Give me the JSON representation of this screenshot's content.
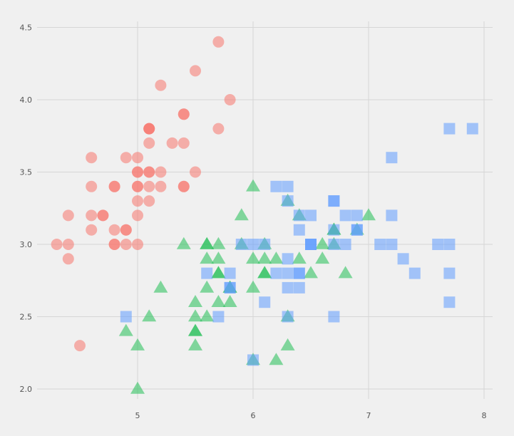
{
  "chart_data": {
    "type": "scatter",
    "title": "",
    "xlabel": "",
    "ylabel": "",
    "xlim": [
      4.2,
      8.1
    ],
    "ylim": [
      1.9,
      4.6
    ],
    "xticks": [
      5,
      6,
      7,
      8
    ],
    "yticks": [
      2.0,
      2.5,
      3.0,
      3.5,
      4.0,
      4.5
    ],
    "xtick_labels": [
      "5",
      "6",
      "7",
      "8"
    ],
    "ytick_labels": [
      "2.0",
      "2.5",
      "3.0",
      "3.5",
      "4.0",
      "4.5"
    ],
    "grid": true,
    "legend": "none",
    "series": [
      {
        "marker": "circle",
        "color": "#f8766d",
        "points": [
          [
            5.1,
            3.5
          ],
          [
            4.9,
            3.0
          ],
          [
            4.7,
            3.2
          ],
          [
            4.6,
            3.1
          ],
          [
            5.0,
            3.6
          ],
          [
            5.4,
            3.9
          ],
          [
            4.6,
            3.4
          ],
          [
            5.0,
            3.4
          ],
          [
            4.4,
            2.9
          ],
          [
            4.9,
            3.1
          ],
          [
            5.4,
            3.7
          ],
          [
            4.8,
            3.4
          ],
          [
            4.8,
            3.0
          ],
          [
            4.3,
            3.0
          ],
          [
            5.8,
            4.0
          ],
          [
            5.7,
            4.4
          ],
          [
            5.4,
            3.9
          ],
          [
            5.1,
            3.5
          ],
          [
            5.7,
            3.8
          ],
          [
            5.1,
            3.8
          ],
          [
            5.4,
            3.4
          ],
          [
            5.1,
            3.7
          ],
          [
            4.6,
            3.6
          ],
          [
            5.1,
            3.3
          ],
          [
            4.8,
            3.4
          ],
          [
            5.0,
            3.0
          ],
          [
            5.0,
            3.4
          ],
          [
            5.2,
            3.5
          ],
          [
            5.2,
            3.4
          ],
          [
            4.7,
            3.2
          ],
          [
            4.8,
            3.1
          ],
          [
            5.4,
            3.4
          ],
          [
            5.2,
            4.1
          ],
          [
            5.5,
            4.2
          ],
          [
            4.9,
            3.1
          ],
          [
            5.0,
            3.2
          ],
          [
            5.5,
            3.5
          ],
          [
            4.9,
            3.6
          ],
          [
            4.4,
            3.0
          ],
          [
            5.1,
            3.4
          ],
          [
            5.0,
            3.5
          ],
          [
            4.5,
            2.3
          ],
          [
            4.4,
            3.2
          ],
          [
            5.0,
            3.5
          ],
          [
            5.1,
            3.8
          ],
          [
            4.8,
            3.0
          ],
          [
            5.1,
            3.8
          ],
          [
            4.6,
            3.2
          ],
          [
            5.3,
            3.7
          ],
          [
            5.0,
            3.3
          ]
        ]
      },
      {
        "marker": "triangle",
        "color": "#22bf55",
        "points": [
          [
            7.0,
            3.2
          ],
          [
            6.4,
            3.2
          ],
          [
            6.9,
            3.1
          ],
          [
            5.5,
            2.3
          ],
          [
            6.5,
            2.8
          ],
          [
            5.7,
            2.8
          ],
          [
            6.3,
            3.3
          ],
          [
            4.9,
            2.4
          ],
          [
            6.6,
            2.9
          ],
          [
            5.2,
            2.7
          ],
          [
            5.0,
            2.0
          ],
          [
            5.9,
            3.0
          ],
          [
            6.0,
            2.2
          ],
          [
            6.1,
            2.9
          ],
          [
            5.6,
            2.9
          ],
          [
            6.7,
            3.1
          ],
          [
            5.6,
            3.0
          ],
          [
            5.8,
            2.7
          ],
          [
            6.2,
            2.2
          ],
          [
            5.6,
            2.5
          ],
          [
            5.9,
            3.2
          ],
          [
            6.1,
            2.8
          ],
          [
            6.3,
            2.5
          ],
          [
            6.1,
            2.8
          ],
          [
            6.4,
            2.9
          ],
          [
            6.6,
            3.0
          ],
          [
            6.8,
            2.8
          ],
          [
            6.7,
            3.0
          ],
          [
            6.0,
            2.9
          ],
          [
            5.7,
            2.6
          ],
          [
            5.5,
            2.4
          ],
          [
            5.5,
            2.4
          ],
          [
            5.8,
            2.7
          ],
          [
            6.0,
            2.7
          ],
          [
            5.4,
            3.0
          ],
          [
            6.0,
            3.4
          ],
          [
            6.7,
            3.1
          ],
          [
            6.3,
            2.3
          ],
          [
            5.6,
            3.0
          ],
          [
            5.5,
            2.5
          ],
          [
            5.5,
            2.6
          ],
          [
            6.1,
            3.0
          ],
          [
            5.8,
            2.6
          ],
          [
            5.0,
            2.3
          ],
          [
            5.6,
            2.7
          ],
          [
            5.7,
            3.0
          ],
          [
            5.7,
            2.9
          ],
          [
            6.2,
            2.9
          ],
          [
            5.1,
            2.5
          ],
          [
            5.7,
            2.8
          ]
        ]
      },
      {
        "marker": "square",
        "color": "#619cff",
        "points": [
          [
            6.3,
            3.3
          ],
          [
            5.8,
            2.7
          ],
          [
            7.1,
            3.0
          ],
          [
            6.3,
            2.9
          ],
          [
            6.5,
            3.0
          ],
          [
            7.6,
            3.0
          ],
          [
            4.9,
            2.5
          ],
          [
            7.3,
            2.9
          ],
          [
            6.7,
            2.5
          ],
          [
            7.2,
            3.6
          ],
          [
            6.5,
            3.2
          ],
          [
            6.4,
            2.7
          ],
          [
            6.8,
            3.0
          ],
          [
            5.7,
            2.5
          ],
          [
            5.8,
            2.8
          ],
          [
            6.4,
            3.2
          ],
          [
            6.5,
            3.0
          ],
          [
            7.7,
            3.8
          ],
          [
            7.7,
            2.6
          ],
          [
            6.0,
            2.2
          ],
          [
            6.9,
            3.2
          ],
          [
            5.6,
            2.8
          ],
          [
            7.7,
            2.8
          ],
          [
            6.3,
            2.7
          ],
          [
            6.7,
            3.3
          ],
          [
            7.2,
            3.2
          ],
          [
            6.2,
            2.8
          ],
          [
            6.1,
            3.0
          ],
          [
            6.4,
            2.8
          ],
          [
            7.2,
            3.0
          ],
          [
            7.4,
            2.8
          ],
          [
            7.9,
            3.8
          ],
          [
            6.4,
            2.8
          ],
          [
            6.3,
            2.8
          ],
          [
            6.1,
            2.6
          ],
          [
            7.7,
            3.0
          ],
          [
            6.3,
            3.4
          ],
          [
            6.4,
            3.1
          ],
          [
            6.0,
            3.0
          ],
          [
            6.9,
            3.1
          ],
          [
            6.7,
            3.1
          ],
          [
            6.9,
            3.1
          ],
          [
            5.8,
            2.7
          ],
          [
            6.8,
            3.2
          ],
          [
            6.7,
            3.3
          ],
          [
            6.7,
            3.0
          ],
          [
            6.3,
            2.5
          ],
          [
            6.5,
            3.0
          ],
          [
            6.2,
            3.4
          ],
          [
            5.9,
            3.0
          ]
        ]
      }
    ]
  }
}
